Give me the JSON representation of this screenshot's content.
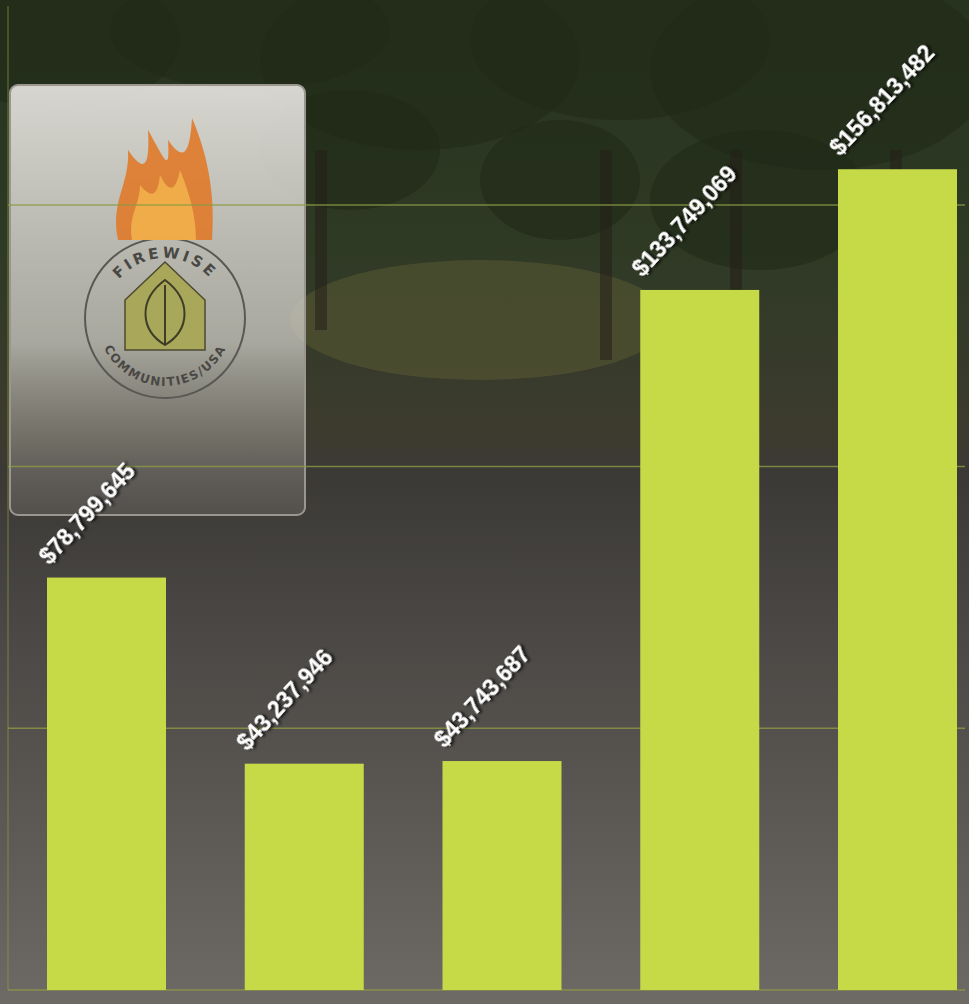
{
  "chart_data": {
    "type": "bar",
    "annotations": [
      "FIREWISE",
      "COMMUNITIES/USA"
    ],
    "categories": [
      null,
      null,
      null,
      null,
      null
    ],
    "values": [
      78799645,
      43237946,
      43743687,
      133749069,
      156813482
    ],
    "value_labels": [
      "$78,799,645",
      "$43,237,946",
      "$43,743,687",
      "$133,749,069",
      "$156,813,482"
    ],
    "color": "#c6da47",
    "ylim": [
      0,
      188000000
    ],
    "yticks": [
      0,
      50000000,
      100000000,
      150000000
    ],
    "grid": true,
    "data_labels": true,
    "tick_labels": false
  }
}
